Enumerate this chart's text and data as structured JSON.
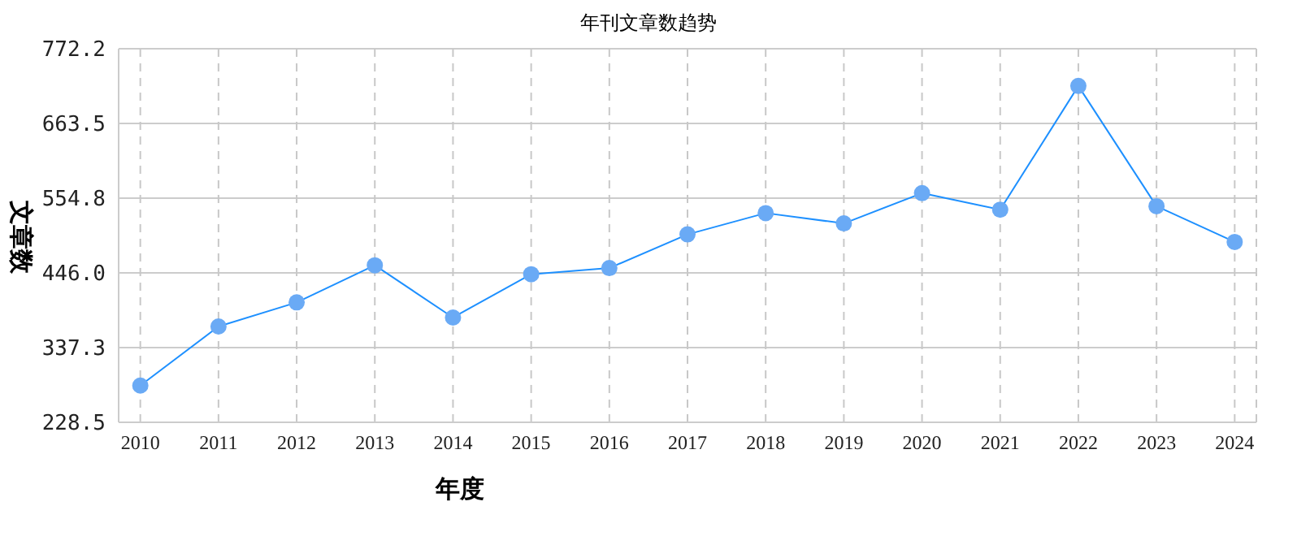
{
  "chart_data": {
    "type": "line",
    "title": "年刊文章数趋势",
    "xlabel": "年度",
    "ylabel": "文章数",
    "categories": [
      "2010",
      "2011",
      "2012",
      "2013",
      "2014",
      "2015",
      "2016",
      "2017",
      "2018",
      "2019",
      "2020",
      "2021",
      "2022",
      "2023",
      "2024"
    ],
    "series": [
      {
        "color": "#1e90ff",
        "values": [
          282,
          368,
          403,
          457,
          381,
          444,
          453,
          502,
          533,
          518,
          562,
          538,
          718,
          543,
          491
        ]
      }
    ],
    "ylim": [
      228.5,
      772.2
    ],
    "yticks": [
      {
        "value": 228.5,
        "label": "228.5"
      },
      {
        "value": 337.3,
        "label": "337.3"
      },
      {
        "value": 446,
        "label": "446.0"
      },
      {
        "value": 554.8,
        "label": "554.8"
      },
      {
        "value": 663.5,
        "label": "663.5"
      },
      {
        "value": 772.2,
        "label": "772.2"
      }
    ],
    "grid": true,
    "marker": "circle",
    "line_style": "solid",
    "legend": false
  }
}
